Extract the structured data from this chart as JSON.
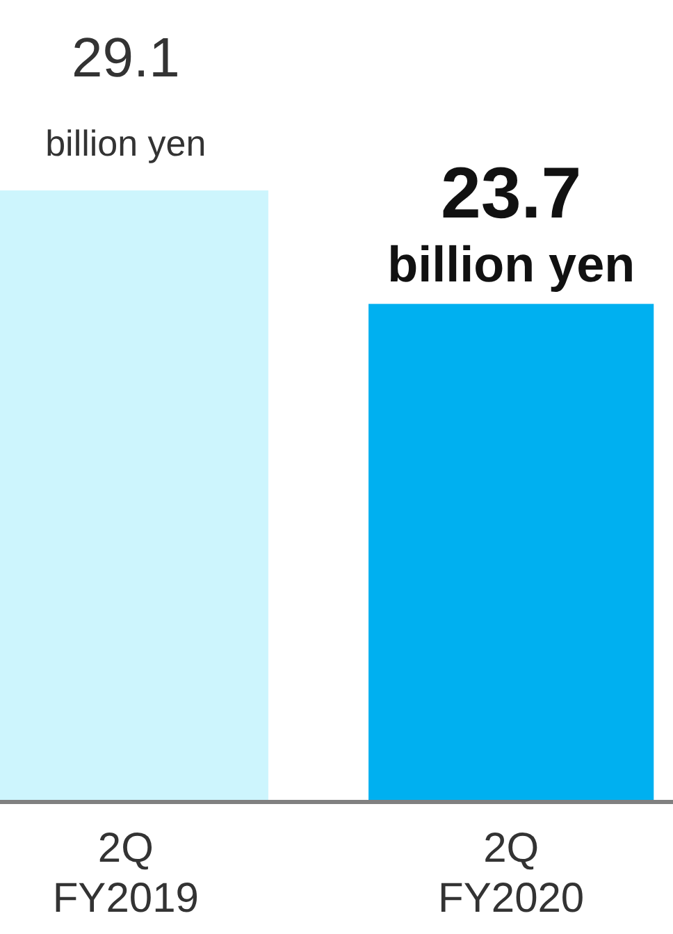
{
  "chart_data": {
    "type": "bar",
    "categories": [
      "2Q FY2019",
      "2Q FY2020"
    ],
    "values": [
      29.1,
      23.7
    ],
    "colors": [
      "#cdf5fd",
      "#00b0f0"
    ],
    "value_labels": [
      "29.1 billion yen",
      "23.7 billion yen"
    ]
  }
}
